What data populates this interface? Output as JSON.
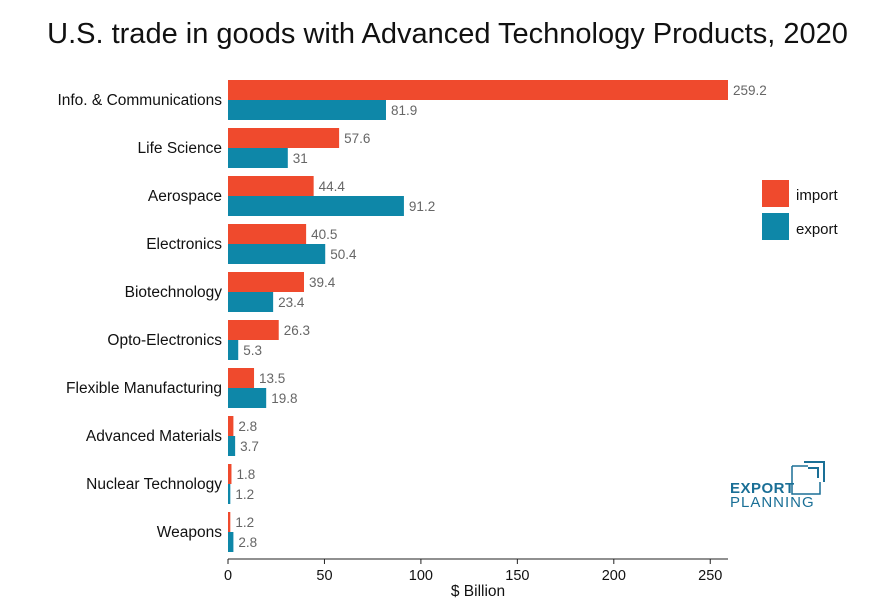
{
  "title": "U.S. trade in goods with Advanced Technology Products, 2020",
  "colors": {
    "import": "#ef4a2d",
    "export": "#0e87a8",
    "logo": "#1a6f96"
  },
  "logo": {
    "line1": "EXPORT",
    "line2": "PLANNING"
  },
  "chart_data": {
    "type": "bar",
    "orientation": "horizontal",
    "categories": [
      "Info. & Communications",
      "Life Science",
      "Aerospace",
      "Electronics",
      "Biotechnology",
      "Opto-Electronics",
      "Flexible Manufacturing",
      "Advanced Materials",
      "Nuclear Technology",
      "Weapons"
    ],
    "series": [
      {
        "name": "import",
        "values": [
          259.2,
          57.6,
          44.4,
          40.5,
          39.4,
          26.3,
          13.5,
          2.8,
          1.8,
          1.2
        ]
      },
      {
        "name": "export",
        "values": [
          81.9,
          31,
          91.2,
          50.4,
          23.4,
          5.3,
          19.8,
          3.7,
          1.2,
          2.8
        ]
      }
    ],
    "value_labels": {
      "import": [
        "259.2",
        "57.6",
        "44.4",
        "40.5",
        "39.4",
        "26.3",
        "13.5",
        "2.8",
        "1.8",
        "1.2"
      ],
      "export": [
        "81.9",
        "31",
        "91.2",
        "50.4",
        "23.4",
        "5.3",
        "19.8",
        "3.7",
        "1.2",
        "2.8"
      ]
    },
    "xlabel": "$ Billion",
    "ylabel": "",
    "xlim": [
      0,
      259.2
    ],
    "xticks": [
      0,
      50,
      100,
      150,
      200,
      250
    ],
    "xtick_labels": [
      "0",
      "50",
      "100",
      "150",
      "200",
      "250"
    ],
    "grid": false,
    "legend": {
      "placement": "right",
      "entries": [
        "import",
        "export"
      ]
    }
  }
}
